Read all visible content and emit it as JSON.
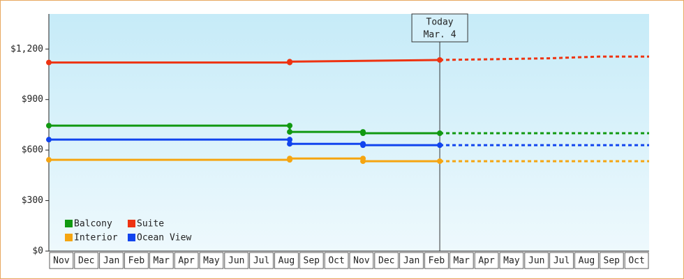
{
  "chart_data": {
    "type": "line",
    "xlim": [
      0,
      24
    ],
    "categories": [
      "Nov",
      "Dec",
      "Jan",
      "Feb",
      "Mar",
      "Apr",
      "May",
      "Jun",
      "Jul",
      "Aug",
      "Sep",
      "Oct",
      "Nov",
      "Dec",
      "Jan",
      "Feb",
      "Mar",
      "Apr",
      "May",
      "Jun",
      "Jul",
      "Aug",
      "Sep",
      "Oct"
    ],
    "ylim": [
      0,
      1400
    ],
    "yticks": [
      {
        "value": 0,
        "label": "$0"
      },
      {
        "value": 300,
        "label": "$300"
      },
      {
        "value": 600,
        "label": "$600"
      },
      {
        "value": 900,
        "label": "$900"
      },
      {
        "value": 1200,
        "label": "$1,200"
      }
    ],
    "today_x": 15.63,
    "today_label": "Today",
    "today_date": "Mar. 4",
    "series": [
      {
        "name": "Balcony",
        "color": "#119911",
        "x": [
          0,
          9.63,
          9.63,
          12.56,
          12.56,
          15.63
        ],
        "values": [
          745,
          745,
          708,
          708,
          700,
          700
        ],
        "forecast_x": [
          15.63,
          24
        ],
        "forecast_values": [
          700,
          700
        ]
      },
      {
        "name": "Suite",
        "color": "#ee3311",
        "x": [
          0,
          9.63,
          9.63,
          15.63
        ],
        "values": [
          1120,
          1120,
          1125,
          1135
        ],
        "forecast_x": [
          15.63,
          18,
          20,
          22,
          24
        ],
        "forecast_values": [
          1135,
          1140,
          1145,
          1155,
          1155
        ]
      },
      {
        "name": "Interior",
        "color": "#f5a511",
        "x": [
          0,
          9.63,
          9.63,
          12.56,
          12.56,
          15.63
        ],
        "values": [
          542,
          542,
          550,
          550,
          534,
          534
        ],
        "forecast_x": [
          15.63,
          24
        ],
        "forecast_values": [
          534,
          534
        ]
      },
      {
        "name": "Ocean View",
        "color": "#1144ee",
        "x": [
          0,
          9.63,
          9.63,
          12.56,
          12.56,
          15.63
        ],
        "values": [
          662,
          662,
          637,
          637,
          629,
          629
        ],
        "forecast_x": [
          15.63,
          24
        ],
        "forecast_values": [
          629,
          629
        ]
      }
    ]
  }
}
